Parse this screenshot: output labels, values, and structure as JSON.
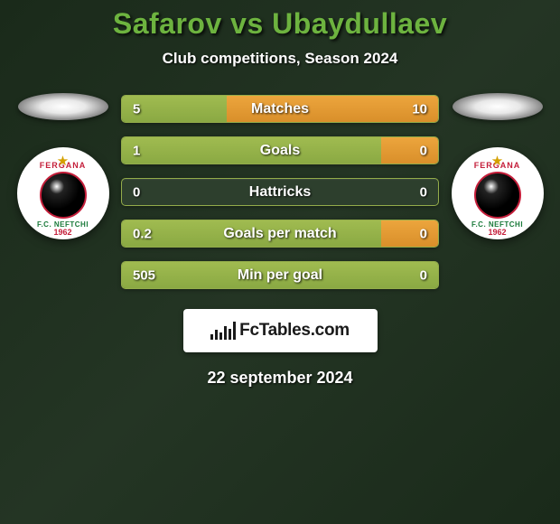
{
  "header": {
    "title": "Safarov vs Ubaydullaev",
    "subtitle": "Club competitions, Season 2024",
    "title_color": "#6db33f",
    "title_fontsize": 32
  },
  "club": {
    "top_text": "FERGANA",
    "bottom_text": "F.C. NEFTCHI",
    "year": "1962"
  },
  "stats": {
    "bar_left_color": "#97b34a",
    "bar_right_color": "#e39a35",
    "bar_border_color": "#a6bf50",
    "rows": [
      {
        "label": "Matches",
        "left_val": "5",
        "right_val": "10",
        "left_pct": 33,
        "right_pct": 67
      },
      {
        "label": "Goals",
        "left_val": "1",
        "right_val": "0",
        "left_pct": 82,
        "right_pct": 18
      },
      {
        "label": "Hattricks",
        "left_val": "0",
        "right_val": "0",
        "left_pct": 0,
        "right_pct": 0
      },
      {
        "label": "Goals per match",
        "left_val": "0.2",
        "right_val": "0",
        "left_pct": 82,
        "right_pct": 18
      },
      {
        "label": "Min per goal",
        "left_val": "505",
        "right_val": "0",
        "left_pct": 100,
        "right_pct": 0
      }
    ]
  },
  "footer": {
    "brand": "FcTables.com",
    "date": "22 september 2024"
  }
}
